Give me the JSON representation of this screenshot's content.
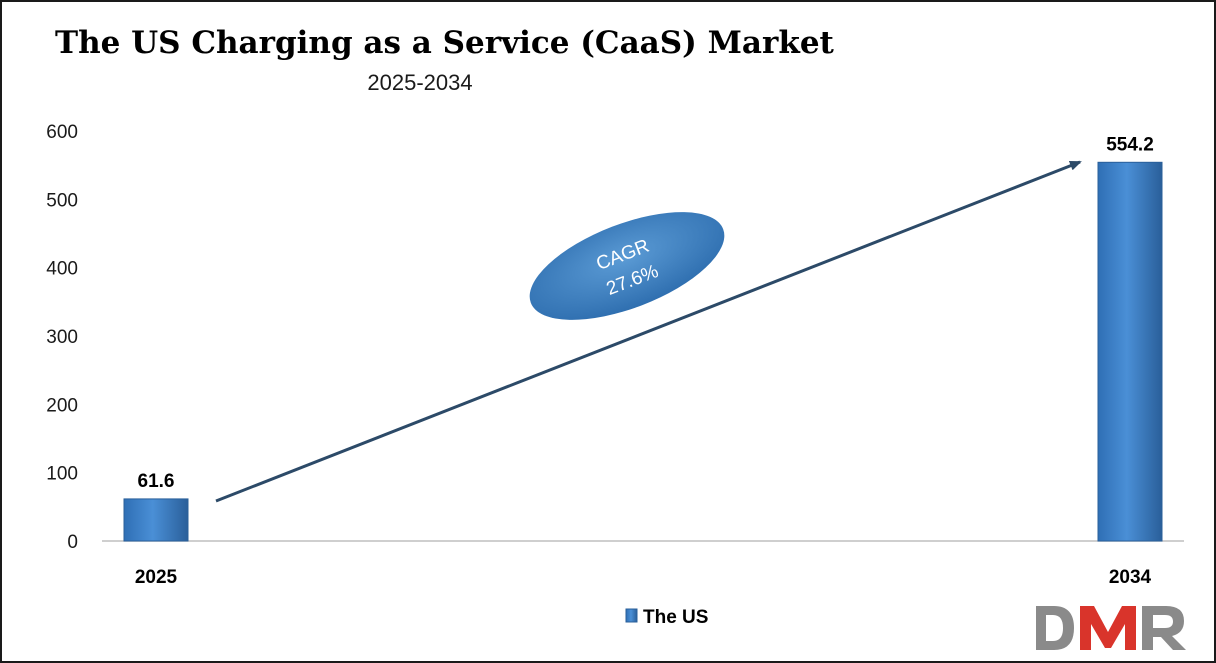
{
  "chart_data": {
    "type": "bar",
    "title": "The US Charging as a Service (CaaS) Market",
    "subtitle": "2025-2034",
    "categories": [
      "2025",
      "2034"
    ],
    "series": [
      {
        "name": "The US",
        "values": [
          61.6,
          554.2
        ],
        "labels": [
          "61.6",
          "554.2"
        ]
      }
    ],
    "ylim": [
      0,
      600
    ],
    "yticks": [
      0,
      100,
      200,
      300,
      400,
      500,
      600
    ],
    "grid": false,
    "legend": "bottom-center",
    "annotation": {
      "line1": "CAGR",
      "line2": "27.6%"
    }
  },
  "colors": {
    "bar": "#3b7dc4",
    "bar_dark": "#2a5f9a",
    "arrow": "#2c4a68",
    "axis": "#bfbfbf"
  },
  "logo": {
    "text": "DMR",
    "icon": "dmr-logo"
  }
}
